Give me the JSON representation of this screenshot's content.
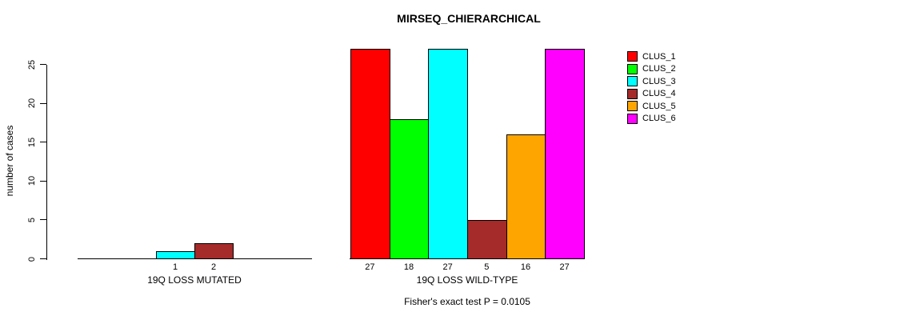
{
  "title": "MIRSEQ_CHIERARCHICAL",
  "footer": "Fisher's exact test P = 0.0105",
  "y_axis": {
    "label": "number of cases",
    "ticks": [
      "0",
      "5",
      "10",
      "15",
      "20",
      "25"
    ]
  },
  "chart_data": {
    "type": "bar",
    "title": "MIRSEQ_CHIERARCHICAL",
    "ylabel": "number of cases",
    "xlabel": "",
    "ylim": [
      0,
      25
    ],
    "yticks": [
      0,
      5,
      10,
      15,
      20,
      25
    ],
    "grid": false,
    "legend_position": "right",
    "categories": [
      "19Q LOSS MUTATED",
      "19Q LOSS WILD-TYPE"
    ],
    "series": [
      {
        "name": "CLUS_1",
        "color": "#ff0000",
        "values": [
          0,
          27
        ]
      },
      {
        "name": "CLUS_2",
        "color": "#00ff00",
        "values": [
          0,
          18
        ]
      },
      {
        "name": "CLUS_3",
        "color": "#00ffff",
        "values": [
          1,
          27
        ]
      },
      {
        "name": "CLUS_4",
        "color": "#a52a2a",
        "values": [
          2,
          5
        ]
      },
      {
        "name": "CLUS_5",
        "color": "#ffa500",
        "values": [
          0,
          16
        ]
      },
      {
        "name": "CLUS_6",
        "color": "#ff00ff",
        "values": [
          0,
          27
        ]
      }
    ],
    "bar_value_labels": [
      [
        "",
        "",
        "1",
        "2",
        "",
        ""
      ],
      [
        "27",
        "18",
        "27",
        "5",
        "16",
        "27"
      ]
    ],
    "annotation": "Fisher's exact test P = 0.0105",
    "note": "bars above 25 extend past top axis tick; zero-value bars render flat on baseline"
  }
}
